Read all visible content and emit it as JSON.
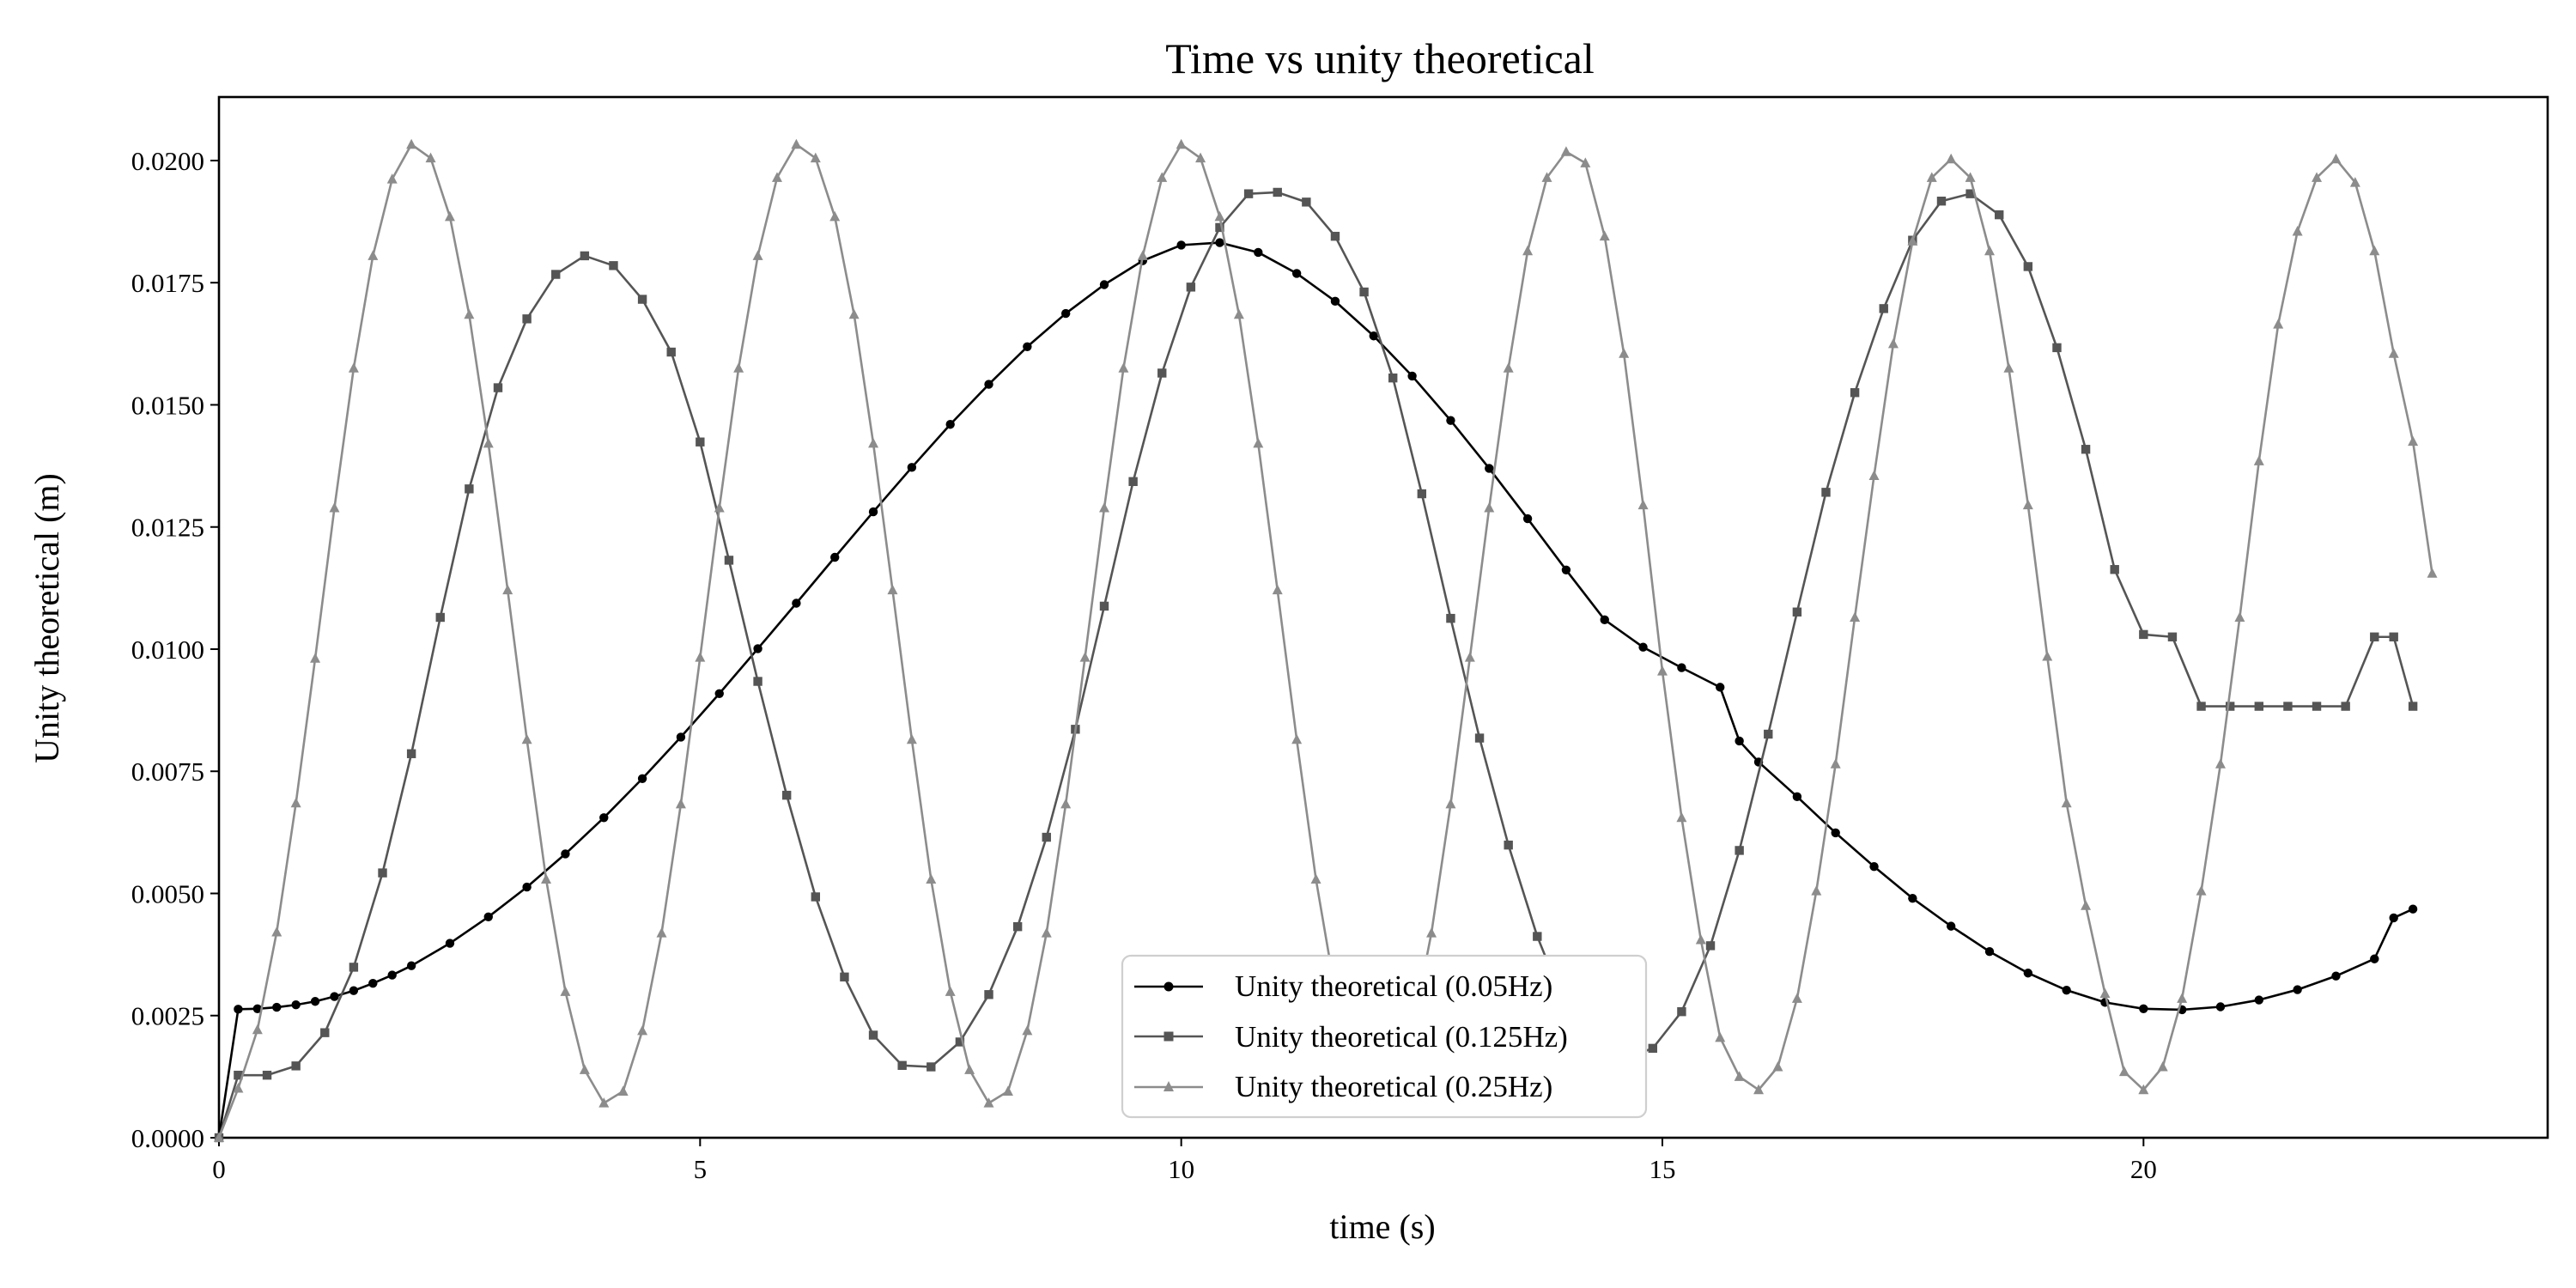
{
  "chart_data": {
    "type": "line",
    "title": "Time vs unity theoretical",
    "xlabel": "time (s)",
    "ylabel": "Unity theoretical (m)",
    "xlim": [
      0,
      24.2
    ],
    "ylim": [
      0,
      0.0213
    ],
    "xticks": [
      0,
      5,
      10,
      15,
      20
    ],
    "xtick_labels": [
      "0",
      "5",
      "10",
      "15",
      "20"
    ],
    "yticks": [
      0,
      0.0025,
      0.005,
      0.0075,
      0.01,
      0.0125,
      0.015,
      0.0175,
      0.02
    ],
    "ytick_labels": [
      "0.0000",
      "0.0025",
      "0.0050",
      "0.0075",
      "0.0100",
      "0.0125",
      "0.0150",
      "0.0175",
      "0.0200"
    ],
    "grid": false,
    "legend_position": "bottom-center",
    "series": [
      {
        "name": "Unity theoretical (0.05Hz)",
        "color": "#000000",
        "marker": "circle",
        "x": [
          0,
          0.2,
          0.4,
          0.6,
          0.8,
          1.0,
          1.2,
          1.4,
          1.6,
          1.8,
          2.0,
          2.4,
          2.8,
          3.2,
          3.6,
          4.0,
          4.4,
          4.8,
          5.2,
          5.6,
          6.0,
          6.4,
          6.8,
          7.2,
          7.6,
          8.0,
          8.4,
          8.8,
          9.2,
          9.6,
          10.0,
          10.4,
          10.8,
          11.2,
          11.6,
          12.0,
          12.4,
          12.8,
          13.2,
          13.6,
          14.0,
          14.4,
          14.8,
          15.2,
          15.6,
          15.8,
          16.0,
          16.4,
          16.8,
          17.2,
          17.6,
          18.0,
          18.4,
          18.8,
          19.2,
          19.6,
          20.0,
          20.4,
          20.8,
          21.2,
          21.6,
          22.0,
          22.4,
          22.6,
          22.8
        ],
        "y": [
          0,
          0.00263,
          0.00264,
          0.00267,
          0.00272,
          0.00279,
          0.00289,
          0.00301,
          0.00316,
          0.00333,
          0.00352,
          0.00398,
          0.00452,
          0.00513,
          0.00581,
          0.00655,
          0.00735,
          0.0082,
          0.00909,
          0.01001,
          0.01094,
          0.01188,
          0.01281,
          0.01372,
          0.0146,
          0.01542,
          0.01619,
          0.01687,
          0.01746,
          0.01795,
          0.01827,
          0.01832,
          0.01812,
          0.01769,
          0.01712,
          0.01641,
          0.01559,
          0.01468,
          0.0137,
          0.01267,
          0.01162,
          0.0106,
          0.01004,
          0.00962,
          0.00922,
          0.00812,
          0.00769,
          0.00698,
          0.00624,
          0.00555,
          0.0049,
          0.00433,
          0.00381,
          0.00337,
          0.00302,
          0.00277,
          0.00264,
          0.00262,
          0.00268,
          0.00282,
          0.00303,
          0.00331,
          0.00366,
          0.0045,
          0.00468
        ]
      },
      {
        "name": "Unity theoretical (0.125Hz)",
        "color": "#555555",
        "marker": "square",
        "x": [
          0,
          0.2,
          0.5,
          0.8,
          1.1,
          1.4,
          1.7,
          2.0,
          2.3,
          2.6,
          2.9,
          3.2,
          3.5,
          3.8,
          4.1,
          4.4,
          4.7,
          5.0,
          5.3,
          5.6,
          5.9,
          6.2,
          6.5,
          6.8,
          7.1,
          7.4,
          7.7,
          8.0,
          8.3,
          8.6,
          8.9,
          9.2,
          9.5,
          9.8,
          10.1,
          10.4,
          10.7,
          11.0,
          11.3,
          11.6,
          11.9,
          12.2,
          12.5,
          12.8,
          13.1,
          13.4,
          13.7,
          14.0,
          14.3,
          14.6,
          14.9,
          15.2,
          15.5,
          15.8,
          16.1,
          16.4,
          16.7,
          17.0,
          17.3,
          17.6,
          17.9,
          18.2,
          18.5,
          18.8,
          19.1,
          19.4,
          19.7,
          20.0,
          20.3,
          20.6,
          20.9,
          21.2,
          21.5,
          21.8,
          22.1,
          22.4,
          22.6,
          22.8
        ],
        "y": [
          0,
          0.00128,
          0.00128,
          0.00147,
          0.00215,
          0.00349,
          0.00542,
          0.00786,
          0.01065,
          0.01328,
          0.01535,
          0.01676,
          0.01767,
          0.01805,
          0.01785,
          0.01716,
          0.01608,
          0.01424,
          0.01182,
          0.00934,
          0.00701,
          0.00493,
          0.00329,
          0.0021,
          0.00148,
          0.00145,
          0.00196,
          0.00293,
          0.00432,
          0.00615,
          0.00836,
          0.01088,
          0.01343,
          0.01565,
          0.01741,
          0.01863,
          0.01932,
          0.01935,
          0.01915,
          0.01845,
          0.01731,
          0.01555,
          0.01318,
          0.01063,
          0.00818,
          0.00599,
          0.00412,
          0.00266,
          0.00175,
          0.00162,
          0.00183,
          0.00258,
          0.00393,
          0.00588,
          0.00826,
          0.01076,
          0.01321,
          0.01525,
          0.01697,
          0.01837,
          0.01917,
          0.01932,
          0.01889,
          0.01783,
          0.01617,
          0.01409,
          0.01163,
          0.0103,
          0.01025,
          0.00883,
          0.00883,
          0.00883,
          0.00883,
          0.00883,
          0.00883,
          0.01025,
          0.01025,
          0.00883
        ]
      },
      {
        "name": "Unity theoretical (0.25Hz)",
        "color": "#8c8c8c",
        "marker": "triangle",
        "x": [
          0,
          0.2,
          0.4,
          0.6,
          0.8,
          1.0,
          1.2,
          1.4,
          1.6,
          1.8,
          2.0,
          2.2,
          2.4,
          2.6,
          2.8,
          3.0,
          3.2,
          3.4,
          3.6,
          3.8,
          4.0,
          4.2,
          4.4,
          4.6,
          4.8,
          5.0,
          5.2,
          5.4,
          5.6,
          5.8,
          6.0,
          6.2,
          6.4,
          6.6,
          6.8,
          7.0,
          7.2,
          7.4,
          7.6,
          7.8,
          8.0,
          8.2,
          8.4,
          8.6,
          8.8,
          9.0,
          9.2,
          9.4,
          9.6,
          9.8,
          10.0,
          10.2,
          10.4,
          10.6,
          10.8,
          11.0,
          11.2,
          11.4,
          11.6,
          11.8,
          12.0,
          12.2,
          12.4,
          12.6,
          12.8,
          13.0,
          13.2,
          13.4,
          13.6,
          13.8,
          14.0,
          14.2,
          14.4,
          14.6,
          14.8,
          15.0,
          15.2,
          15.4,
          15.6,
          15.8,
          16.0,
          16.2,
          16.4,
          16.6,
          16.8,
          17.0,
          17.2,
          17.4,
          17.6,
          17.8,
          18.0,
          18.2,
          18.4,
          18.6,
          18.8,
          19.0,
          19.2,
          19.4,
          19.6,
          19.8,
          20.0,
          20.2,
          20.4,
          20.6,
          20.8,
          21.0,
          21.2,
          21.4,
          21.6,
          21.8,
          22.0,
          22.2,
          22.4,
          22.6,
          22.8,
          23.0
        ],
        "y": [
          0,
          0.00101,
          0.00221,
          0.00421,
          0.00685,
          0.00981,
          0.01289,
          0.01575,
          0.01805,
          0.01962,
          0.02033,
          0.02005,
          0.01885,
          0.01685,
          0.01421,
          0.01121,
          0.00815,
          0.00529,
          0.00299,
          0.00139,
          0.00071,
          0.00095,
          0.00219,
          0.00419,
          0.00683,
          0.00983,
          0.01289,
          0.01575,
          0.01805,
          0.01965,
          0.02033,
          0.02005,
          0.01885,
          0.01685,
          0.01421,
          0.01121,
          0.00815,
          0.00529,
          0.00299,
          0.00139,
          0.00071,
          0.00095,
          0.00219,
          0.00419,
          0.00683,
          0.00983,
          0.01289,
          0.01575,
          0.01805,
          0.01965,
          0.02033,
          0.02005,
          0.01885,
          0.01685,
          0.01421,
          0.01121,
          0.00815,
          0.00529,
          0.00299,
          0.00139,
          0.00071,
          0.00095,
          0.00219,
          0.00419,
          0.00683,
          0.00983,
          0.01289,
          0.01575,
          0.01815,
          0.01965,
          0.02018,
          0.01995,
          0.01845,
          0.01605,
          0.01295,
          0.00955,
          0.00655,
          0.00405,
          0.00205,
          0.00125,
          0.00098,
          0.00145,
          0.00285,
          0.00505,
          0.00765,
          0.01065,
          0.01355,
          0.01625,
          0.01835,
          0.01965,
          0.02003,
          0.01965,
          0.01815,
          0.01575,
          0.01295,
          0.00985,
          0.00685,
          0.00475,
          0.00295,
          0.00135,
          0.00098,
          0.00145,
          0.00285,
          0.00505,
          0.00765,
          0.01065,
          0.01385,
          0.01665,
          0.01855,
          0.01965,
          0.02003,
          0.01955,
          0.01815,
          0.01605,
          0.01425,
          0.01155
        ]
      }
    ]
  }
}
